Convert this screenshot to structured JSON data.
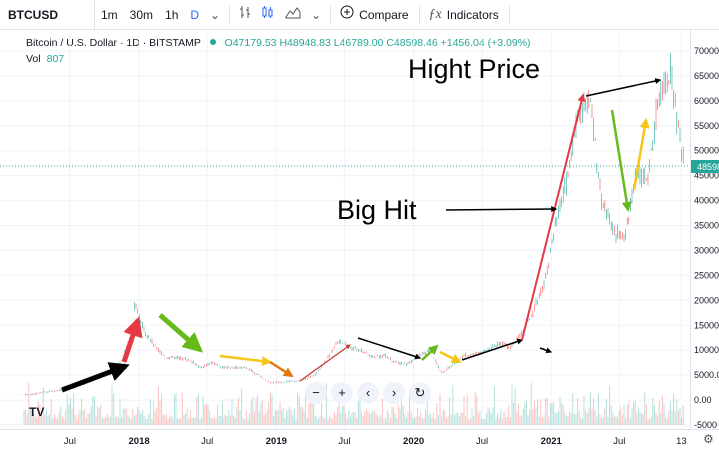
{
  "toolbar": {
    "symbol": "BTCUSD",
    "intervals": [
      "1m",
      "30m",
      "1h",
      "D"
    ],
    "active_interval": "D",
    "compare_label": "Compare",
    "indicators_label": "Indicators",
    "icons": [
      "chevron-down-icon",
      "bars-icon",
      "candles-icon",
      "area-icon",
      "chevron-down-icon",
      "plus-circle-icon",
      "fx-icon"
    ]
  },
  "legend": {
    "title": "Bitcoin / U.S. Dollar",
    "interval": "1D",
    "exchange": "BITSTAMP",
    "open": "O47179.53",
    "high": "H48948.83",
    "low": "L46789.00",
    "close": "C48598.46",
    "change": "+1456.04 (+3.09%)"
  },
  "volume": {
    "label": "Vol",
    "value": "807"
  },
  "annotations": {
    "high_price": "Hight Price",
    "big_hit": "Big Hit"
  },
  "navigation": {
    "zoom_out": "−",
    "zoom_in": "+",
    "scroll_left": "‹",
    "scroll_right": "›",
    "reset": "↻"
  },
  "colors": {
    "up": "#26a69a",
    "down": "#ef5350",
    "price_line": "#26a69a"
  },
  "chart_data": {
    "type": "line",
    "title": "",
    "xlabel": "",
    "ylabel": "",
    "x_ticks": [
      "Jul",
      "2018",
      "Jul",
      "2019",
      "Jul",
      "2020",
      "Jul",
      "2021",
      "Jul",
      "13"
    ],
    "y_ticks": [
      "70000",
      "65000",
      "60000",
      "55000",
      "50000",
      "45000",
      "40000",
      "35000",
      "30000",
      "25000",
      "20000",
      "15000",
      "10000",
      "5000.00",
      "0.00",
      "-5000"
    ],
    "ylim": [
      -5000,
      72000
    ],
    "current_price_label": "48598",
    "current_price": 48598,
    "x": [
      "2017-03",
      "2017-05",
      "2017-07",
      "2017-09",
      "2017-10",
      "2017-11",
      "2017-12",
      "2017-12-17",
      "2018-01",
      "2018-02",
      "2018-03",
      "2018-04",
      "2018-05",
      "2018-06",
      "2018-07",
      "2018-08",
      "2018-09",
      "2018-10",
      "2018-11",
      "2018-12",
      "2019-01",
      "2019-03",
      "2019-04",
      "2019-05",
      "2019-06",
      "2019-07",
      "2019-08",
      "2019-09",
      "2019-10",
      "2019-11",
      "2019-12",
      "2020-01",
      "2020-02",
      "2020-03",
      "2020-04",
      "2020-05",
      "2020-06",
      "2020-07",
      "2020-08",
      "2020-09",
      "2020-10",
      "2020-11",
      "2020-12",
      "2021-01",
      "2021-02",
      "2021-03",
      "2021-04",
      "2021-05",
      "2021-06",
      "2021-07",
      "2021-08",
      "2021-09",
      "2021-10",
      "2021-11",
      "2021-12"
    ],
    "series": [
      {
        "values": [
          1100,
          1800,
          2600,
          4300,
          5500,
          8000,
          14000,
          19500,
          14000,
          10500,
          8500,
          8500,
          8000,
          6500,
          7500,
          6500,
          6500,
          6400,
          5000,
          3500,
          3600,
          4000,
          5200,
          8000,
          12000,
          10500,
          10000,
          8500,
          9000,
          7500,
          7200,
          9000,
          9800,
          5500,
          7000,
          9000,
          9200,
          10000,
          11500,
          10500,
          13500,
          18000,
          24000,
          36000,
          45000,
          58000,
          60000,
          40000,
          34000,
          32000,
          46000,
          44000,
          62000,
          66000,
          48600
        ]
      }
    ]
  }
}
